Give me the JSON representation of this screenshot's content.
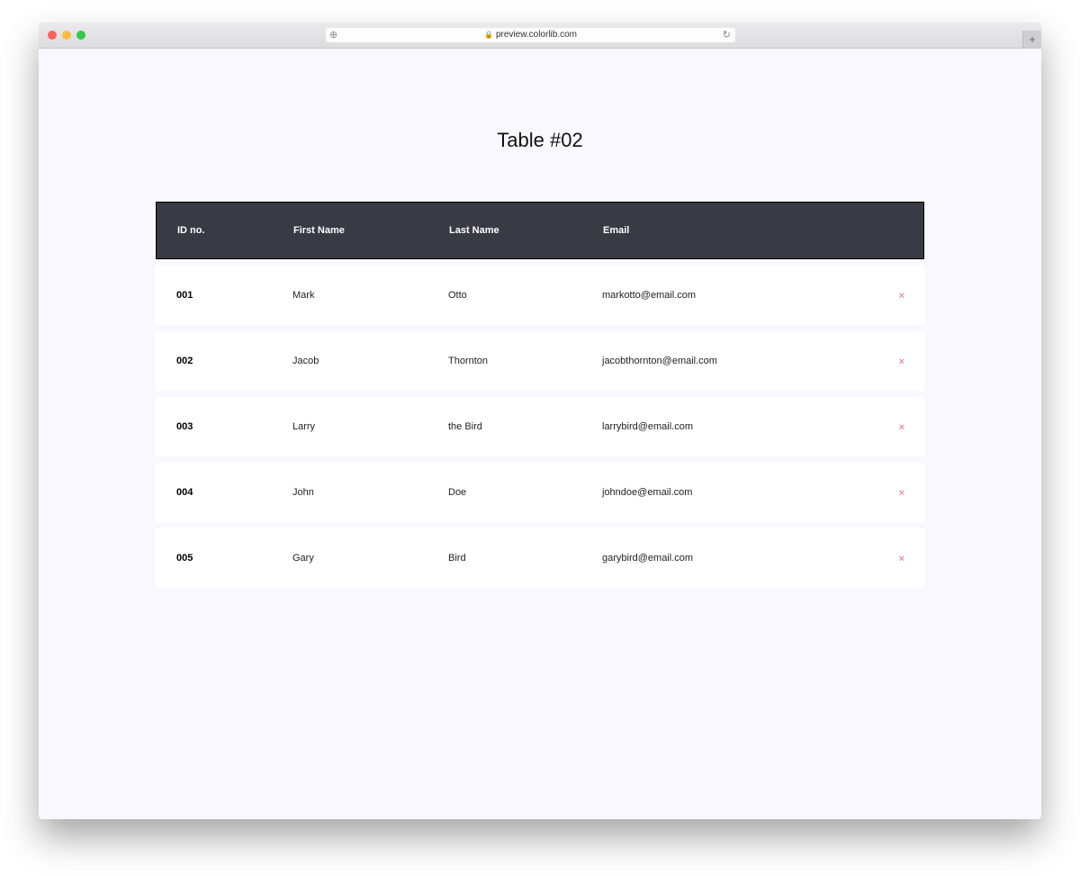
{
  "browser": {
    "url": "preview.colorlib.com",
    "new_tab": "+"
  },
  "page": {
    "title": "Table #02"
  },
  "table": {
    "headers": [
      "ID no.",
      "First Name",
      "Last Name",
      "Email"
    ],
    "rows": [
      [
        "001",
        "Mark",
        "Otto",
        "markotto@email.com"
      ],
      [
        "002",
        "Jacob",
        "Thornton",
        "jacobthornton@email.com"
      ],
      [
        "003",
        "Larry",
        "the Bird",
        "larrybird@email.com"
      ],
      [
        "004",
        "John",
        "Doe",
        "johndoe@email.com"
      ],
      [
        "005",
        "Gary",
        "Bird",
        "garybird@email.com"
      ]
    ],
    "delete_icon": "close-icon",
    "delete_glyph": "×"
  },
  "colors": {
    "header_bg": "#383a44",
    "delete": "#e88fa6",
    "page_bg": "#f9f8fe"
  }
}
